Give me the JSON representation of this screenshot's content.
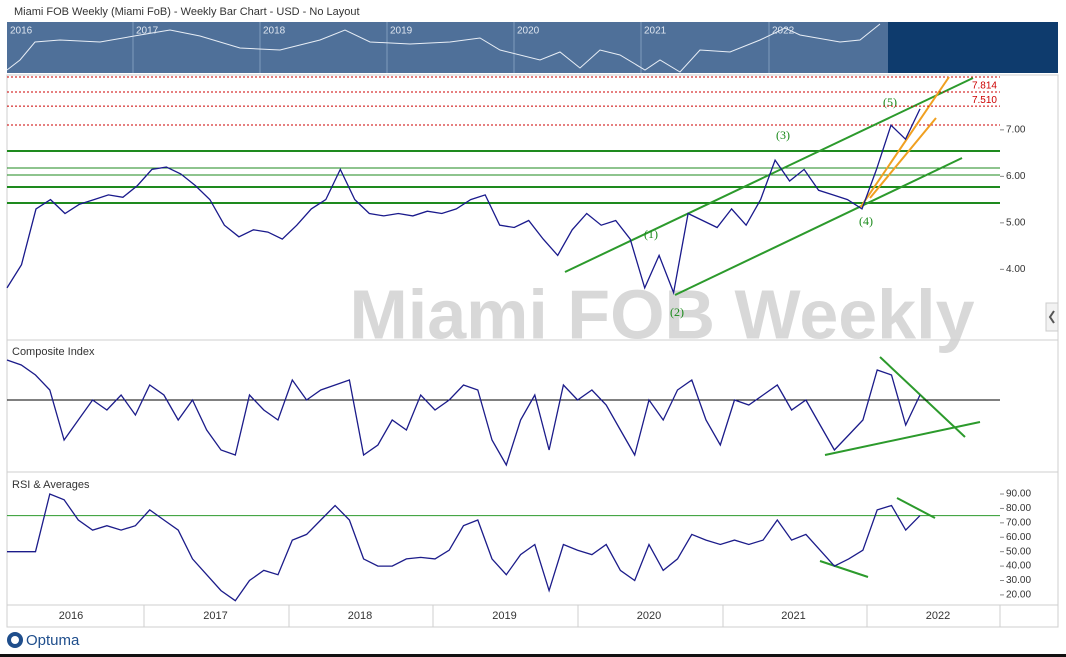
{
  "header": {
    "title": "Miami FOB Weekly (Miami FoB) - Weekly Bar Chart - USD - No Layout"
  },
  "navigator": {
    "labels": [
      "2016",
      "2017",
      "2018",
      "2019",
      "2020",
      "2021",
      "2022"
    ]
  },
  "chart_data": [
    {
      "type": "line",
      "watermark": "Miami FOB Weekly",
      "color": "#1a1a8c",
      "values": [
        3.6,
        4.1,
        5.3,
        5.5,
        5.2,
        5.4,
        5.5,
        5.6,
        5.55,
        5.8,
        6.15,
        6.2,
        6.05,
        5.8,
        5.5,
        4.95,
        4.7,
        4.85,
        4.8,
        4.65,
        4.95,
        5.3,
        5.5,
        6.15,
        5.5,
        5.2,
        5.15,
        5.2,
        5.15,
        5.25,
        5.2,
        5.3,
        5.5,
        5.6,
        4.95,
        4.9,
        5.05,
        4.65,
        4.3,
        4.85,
        5.2,
        4.95,
        5.05,
        4.65,
        3.6,
        4.3,
        3.5,
        5.2,
        5.05,
        4.9,
        5.3,
        4.95,
        5.5,
        6.35,
        5.9,
        6.15,
        5.7,
        5.6,
        5.5,
        5.3,
        6.15,
        7.1,
        6.8,
        7.45
      ],
      "ylim": [
        2.48,
        8.18
      ],
      "yticks": [
        {
          "value": 4,
          "label": "4.00"
        },
        {
          "value": 5,
          "label": "5.00"
        },
        {
          "value": 6,
          "label": "6.00"
        },
        {
          "value": 7,
          "label": "7.00"
        }
      ],
      "levels": [
        7.814,
        {
          "value": 7.51,
          "label": "7.510"
        }
      ],
      "annotations": [
        "(1)",
        "(2)",
        "(3)",
        "(4)",
        "(5)"
      ]
    },
    {
      "type": "line",
      "title": "Composite Index",
      "color": "#1c1c8a",
      "values": [
        40,
        35,
        25,
        10,
        -40,
        -20,
        0,
        -10,
        5,
        -15,
        15,
        5,
        -20,
        0,
        -30,
        -50,
        -55,
        5,
        -10,
        -20,
        20,
        0,
        10,
        15,
        20,
        -55,
        -45,
        -20,
        -30,
        5,
        -10,
        0,
        15,
        10,
        -40,
        -65,
        -20,
        5,
        -50,
        15,
        0,
        10,
        -5,
        -30,
        -55,
        0,
        -20,
        10,
        20,
        -20,
        -45,
        0,
        -5,
        5,
        15,
        -10,
        0,
        -25,
        -50,
        -35,
        -20,
        30,
        25,
        -25,
        5
      ],
      "ylim": [
        -70,
        58
      ],
      "reference_line": 0
    },
    {
      "type": "line",
      "title": "RSI & Averages",
      "color": "#1c1c8a",
      "values": [
        50,
        50,
        50,
        90,
        86,
        72,
        65,
        68,
        65,
        68,
        79,
        72,
        65,
        45,
        34,
        23,
        16,
        30,
        37,
        34,
        58,
        62,
        72,
        82,
        72,
        45,
        40,
        40,
        45,
        46,
        45,
        51,
        68,
        72,
        45,
        34,
        48,
        55,
        23,
        55,
        51,
        48,
        55,
        37,
        30,
        55,
        37,
        45,
        62,
        58,
        55,
        58,
        55,
        58,
        72,
        58,
        62,
        51,
        40,
        45,
        51,
        79,
        82,
        65,
        75
      ],
      "ylim": [
        13,
        102.5
      ],
      "yticks": [
        {
          "value": 20,
          "label": "20.00"
        },
        {
          "value": 30,
          "label": "30.00"
        },
        {
          "value": 40,
          "label": "40.00"
        },
        {
          "value": 50,
          "label": "50.00"
        },
        {
          "value": 60,
          "label": "60.00"
        },
        {
          "value": 70,
          "label": "70.00"
        },
        {
          "value": 80,
          "label": "80.00"
        },
        {
          "value": 90,
          "label": "90.00"
        }
      ],
      "reference_line": 75,
      "x_axis_labels": [
        "2016",
        "2017",
        "2018",
        "2019",
        "2020",
        "2021",
        "2022"
      ]
    }
  ],
  "footer": {
    "logo": "Optuma"
  }
}
